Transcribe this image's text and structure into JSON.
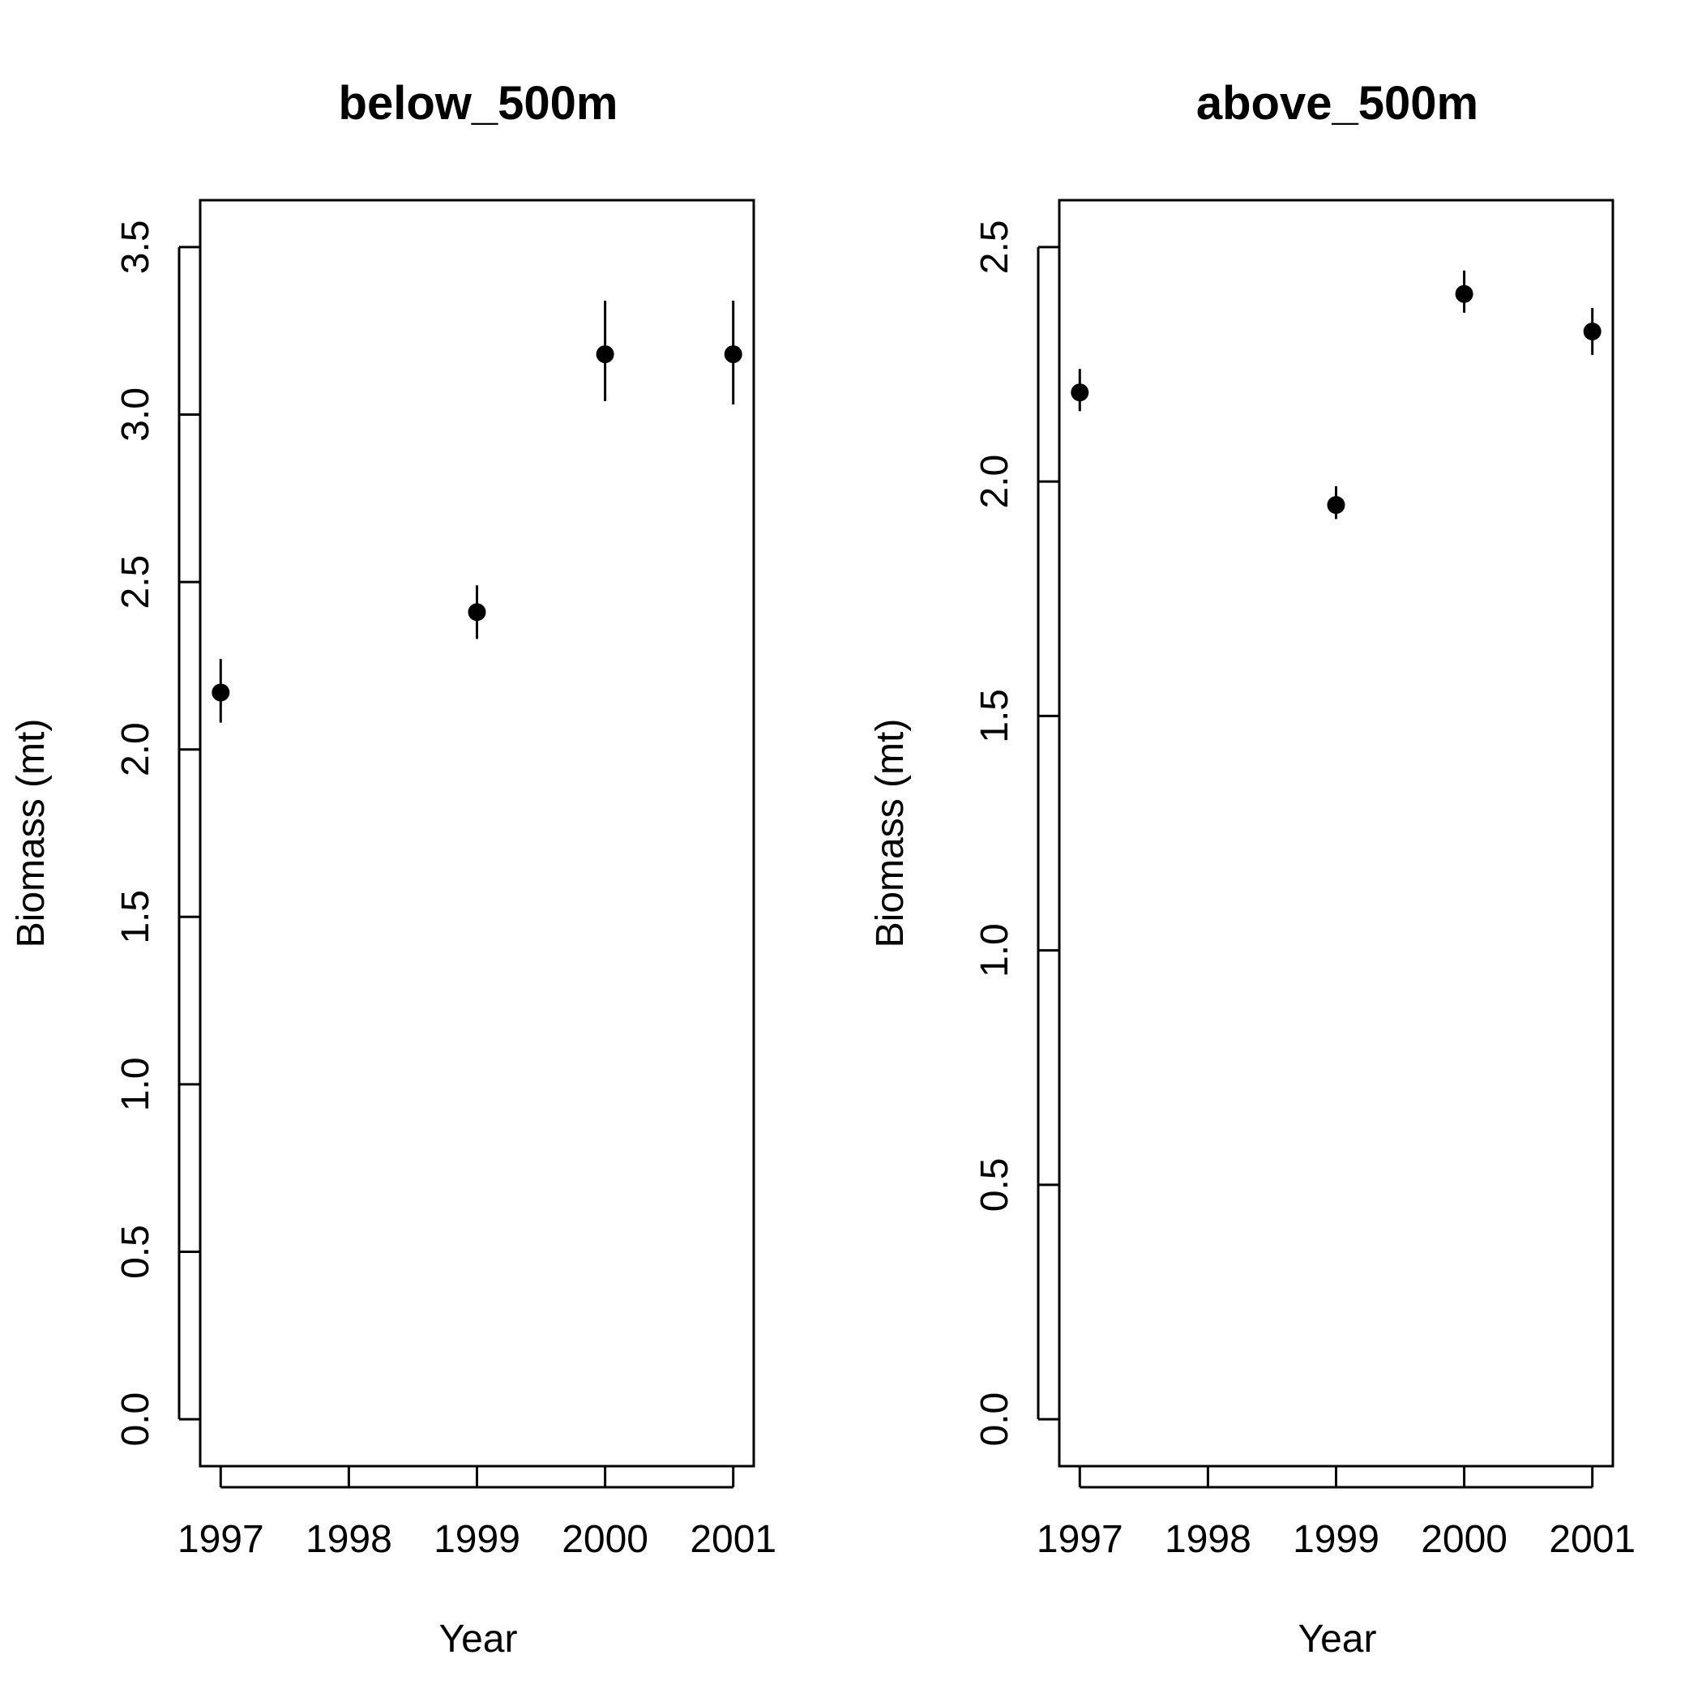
{
  "chart_data": [
    {
      "type": "scatter",
      "title": "below_500m",
      "xlabel": "Year",
      "ylabel": "Biomass (mt)",
      "xlim": [
        1997,
        2001
      ],
      "ylim": [
        0,
        3.5
      ],
      "x_ticks": [
        1997,
        1998,
        1999,
        2000,
        2001
      ],
      "x_tick_labels": [
        "1997",
        "1998",
        "1999",
        "2000",
        "2001"
      ],
      "y_ticks": [
        0,
        0.5,
        1,
        1.5,
        2,
        2.5,
        3,
        3.5
      ],
      "y_tick_labels": [
        "0.0",
        "0.5",
        "1.0",
        "1.5",
        "2.0",
        "2.5",
        "3.0",
        "3.5"
      ],
      "x": [
        1997,
        1999,
        2000,
        2001
      ],
      "y": [
        2.17,
        2.41,
        3.18,
        3.18
      ],
      "y_lower": [
        2.08,
        2.33,
        3.04,
        3.03
      ],
      "y_upper": [
        2.27,
        2.49,
        3.34,
        3.34
      ],
      "grid": false,
      "color": "#000000"
    },
    {
      "type": "scatter",
      "title": "above_500m",
      "xlabel": "Year",
      "ylabel": "Biomass (mt)",
      "xlim": [
        1997,
        2001
      ],
      "ylim": [
        0,
        2.5
      ],
      "x_ticks": [
        1997,
        1998,
        1999,
        2000,
        2001
      ],
      "x_tick_labels": [
        "1997",
        "1998",
        "1999",
        "2000",
        "2001"
      ],
      "y_ticks": [
        0,
        0.5,
        1,
        1.5,
        2,
        2.5
      ],
      "y_tick_labels": [
        "0.0",
        "0.5",
        "1.0",
        "1.5",
        "2.0",
        "2.5"
      ],
      "x": [
        1997,
        1999,
        2000,
        2001
      ],
      "y": [
        2.19,
        1.95,
        2.4,
        2.32
      ],
      "y_lower": [
        2.15,
        1.92,
        2.36,
        2.27
      ],
      "y_upper": [
        2.24,
        1.99,
        2.45,
        2.37
      ],
      "grid": false,
      "color": "#000000"
    }
  ]
}
